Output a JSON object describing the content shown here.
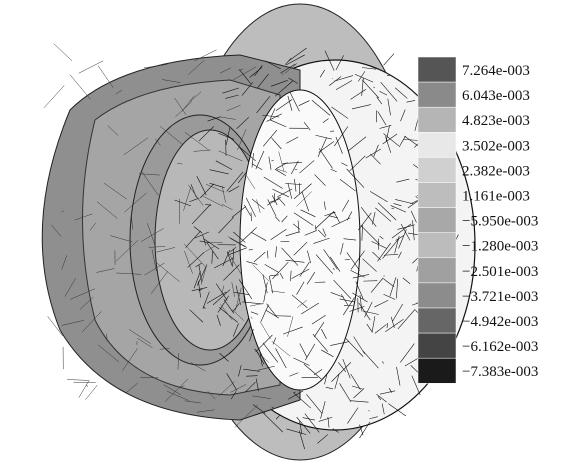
{
  "legend": {
    "labels": [
      "7.264e-003",
      "6.043e-003",
      "4.823e-003",
      "3.502e-003",
      "2.382e-003",
      "1.161e-003",
      "−5.950e-003",
      "−1.280e-003",
      "−2.501e-003",
      "−3.721e-003",
      "−4.942e-003",
      "−6.162e-003",
      "−7.383e-003"
    ]
  }
}
